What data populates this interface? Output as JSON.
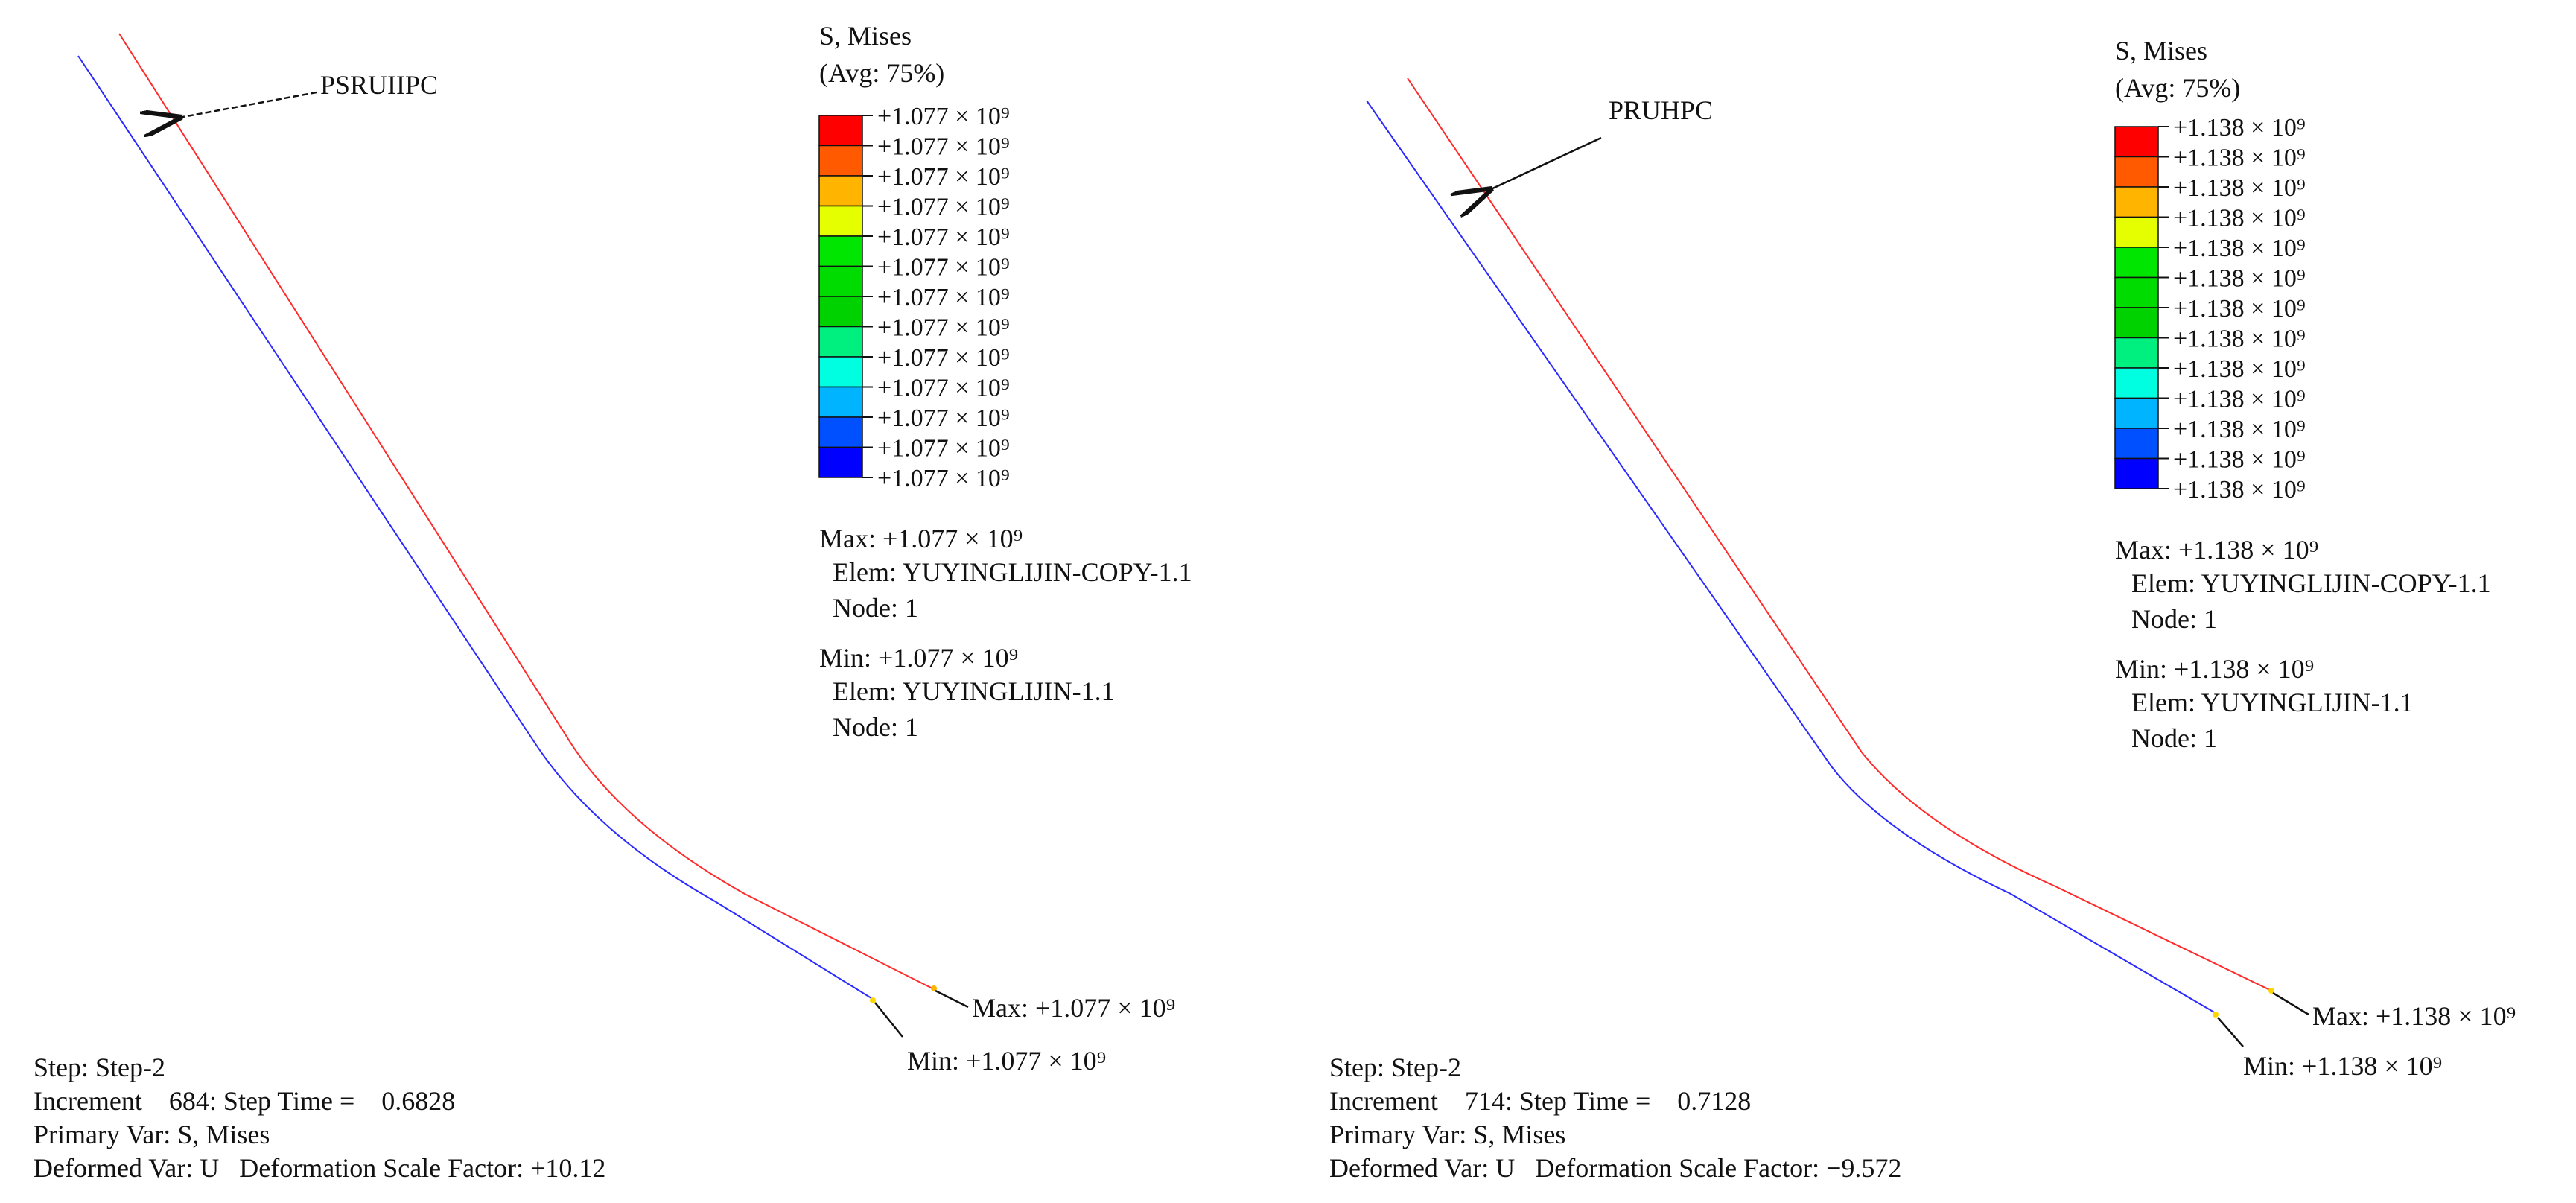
{
  "panels": [
    {
      "id": "left",
      "callout_label": "PSRUIIPC",
      "legend": {
        "title": "S, Mises",
        "subtitle": "(Avg: 75%)",
        "colors": [
          "#ff0000",
          "#ff5a00",
          "#ffb400",
          "#e6ff00",
          "#00e600",
          "#00dc00",
          "#00d200",
          "#00f080",
          "#00ffe0",
          "#00b4ff",
          "#0050ff",
          "#0000ff"
        ],
        "tick_labels": [
          "+1.077 × 10⁹",
          "+1.077 × 10⁹",
          "+1.077 × 10⁹",
          "+1.077 × 10⁹",
          "+1.077 × 10⁹",
          "+1.077 × 10⁹",
          "+1.077 × 10⁹",
          "+1.077 × 10⁹",
          "+1.077 × 10⁹",
          "+1.077 × 10⁹",
          "+1.077 × 10⁹",
          "+1.077 × 10⁹",
          "+1.077 × 10⁹"
        ]
      },
      "max_block": {
        "value_line": "Max: +1.077 × 10⁹",
        "elem_line": "Elem: YUYINGLIJIN-COPY-1.1",
        "node_line": "Node: 1"
      },
      "min_block": {
        "value_line": "Min:  +1.077 × 10⁹",
        "elem_line": "Elem: YUYINGLIJIN-1.1",
        "node_line": "Node: 1"
      },
      "max_callout": "Max: +1.077 × 10⁹",
      "min_callout": "Min:  +1.077 × 10⁹",
      "step_info": {
        "step": "Step: Step-2",
        "increment": "Increment    684: Step Time =    0.6828",
        "primary_var": "Primary Var: S, Mises",
        "deformed_var": "Deformed Var: U   Deformation Scale Factor: +10.12"
      }
    },
    {
      "id": "right",
      "callout_label": "PRUHPC",
      "legend": {
        "title": "S, Mises",
        "subtitle": "(Avg: 75%)",
        "colors": [
          "#ff0000",
          "#ff5a00",
          "#ffb400",
          "#e6ff00",
          "#00e600",
          "#00dc00",
          "#00d200",
          "#00f080",
          "#00ffe0",
          "#00b4ff",
          "#0050ff",
          "#0000ff"
        ],
        "tick_labels": [
          "+1.138 × 10⁹",
          "+1.138 × 10⁹",
          "+1.138 × 10⁹",
          "+1.138 × 10⁹",
          "+1.138 × 10⁹",
          "+1.138 × 10⁹",
          "+1.138 × 10⁹",
          "+1.138 × 10⁹",
          "+1.138 × 10⁹",
          "+1.138 × 10⁹",
          "+1.138 × 10⁹",
          "+1.138 × 10⁹",
          "+1.138 × 10⁹"
        ]
      },
      "max_block": {
        "value_line": "Max: +1.138 × 10⁹",
        "elem_line": "Elem: YUYINGLIJIN-COPY-1.1",
        "node_line": "Node: 1"
      },
      "min_block": {
        "value_line": "Min: +1.138 × 10⁹",
        "elem_line": "Elem: YUYINGLIJIN-1.1",
        "node_line": "Node: 1"
      },
      "max_callout": "Max: +1.138 × 10⁹",
      "min_callout": "Min: +1.138 × 10⁹",
      "step_info": {
        "step": "Step: Step-2",
        "increment": "Increment    714: Step Time =    0.7128",
        "primary_var": "Primary Var: S, Mises",
        "deformed_var": "Deformed Var: U   Deformation Scale Factor: −9.572"
      }
    }
  ],
  "colors": {
    "upper_wire": "#ff2a2a",
    "lower_wire": "#2a2aff",
    "leader": "#111111"
  }
}
